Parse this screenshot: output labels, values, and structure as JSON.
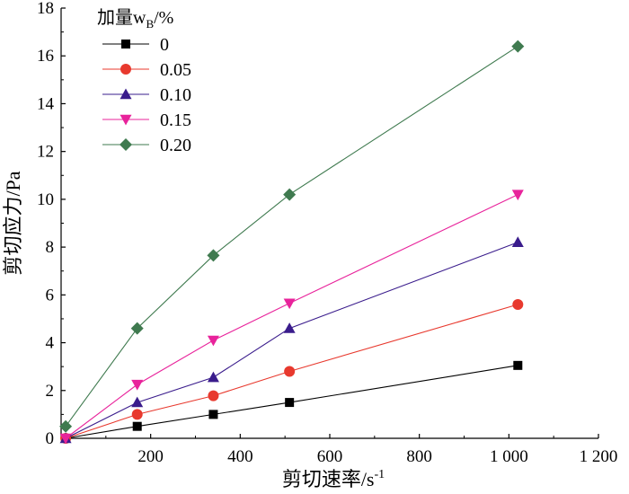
{
  "chart_data": {
    "type": "line",
    "xlabel": "剪切速率/s",
    "xlabel_sup": "-1",
    "ylabel": "剪切应力/Pa",
    "xlim": [
      0,
      1200
    ],
    "ylim": [
      0,
      18
    ],
    "xticks": [
      200,
      400,
      600,
      800,
      1000,
      1200
    ],
    "xtick_labels": [
      "200",
      "400",
      "600",
      "800",
      "1 000",
      "1 200"
    ],
    "yticks": [
      0,
      2,
      4,
      6,
      8,
      10,
      12,
      14,
      16,
      18
    ],
    "ytick_labels": [
      "0",
      "2",
      "4",
      "6",
      "8",
      "10",
      "12",
      "14",
      "16",
      "18"
    ],
    "legend_title": {
      "main": "加量w",
      "sub": "B",
      "tail": "/%"
    },
    "legend_position": "top-left",
    "x": [
      10.2,
      170,
      340,
      510,
      1020
    ],
    "series": [
      {
        "name": "0",
        "color": "#000000",
        "marker": "square",
        "values": [
          0.0,
          0.5,
          1.0,
          1.5,
          3.05
        ]
      },
      {
        "name": "0.05",
        "color": "#e8392e",
        "marker": "circle",
        "values": [
          0.0,
          1.0,
          1.78,
          2.8,
          5.6
        ]
      },
      {
        "name": "0.10",
        "color": "#3a1c8c",
        "marker": "triangle-up",
        "values": [
          0.0,
          1.5,
          2.55,
          4.6,
          8.2
        ]
      },
      {
        "name": "0.15",
        "color": "#e8239b",
        "marker": "triangle-down",
        "values": [
          0.0,
          2.25,
          4.1,
          5.65,
          10.2
        ]
      },
      {
        "name": "0.20",
        "color": "#3f7a4f",
        "marker": "diamond",
        "values": [
          0.5,
          4.6,
          7.65,
          10.2,
          16.4
        ]
      }
    ]
  }
}
